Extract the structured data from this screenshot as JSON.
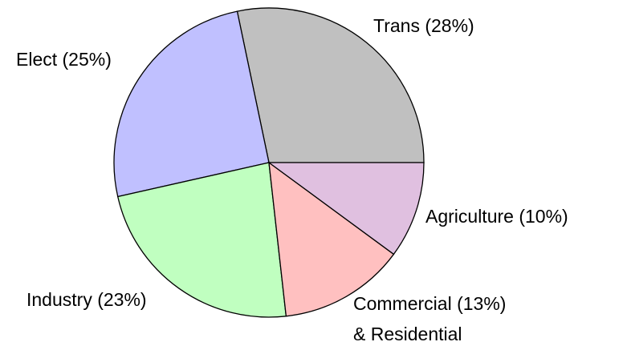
{
  "chart_data": {
    "type": "pie",
    "values": [
      28,
      25,
      23,
      13,
      10
    ],
    "value_labels": [
      [
        "Trans (28%)"
      ],
      [
        "Elect (25%)"
      ],
      [
        "Industry (23%)"
      ],
      [
        "Commercial (13%)",
        "& Residential"
      ],
      [
        "Agriculture (10%)"
      ]
    ],
    "colors": [
      "#c0c0c0",
      "#c0c0ff",
      "#c0ffc0",
      "#ffc0c0",
      "#e0c0e0"
    ]
  }
}
